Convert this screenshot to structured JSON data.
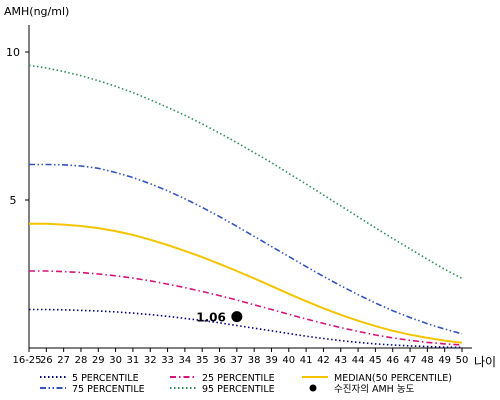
{
  "chart_data": {
    "type": "line",
    "ylabel": "AMH(ng/ml)",
    "xlabel": "나이",
    "x": [
      "16-25",
      "26",
      "27",
      "28",
      "29",
      "30",
      "31",
      "32",
      "33",
      "34",
      "35",
      "36",
      "37",
      "38",
      "39",
      "40",
      "41",
      "42",
      "43",
      "44",
      "45",
      "46",
      "47",
      "48",
      "49",
      "50"
    ],
    "ylim": [
      0,
      11
    ],
    "yticks": [
      5,
      10
    ],
    "series": [
      {
        "name": "5 PERCENTILE",
        "color": "#000080",
        "dash": "dot",
        "values": [
          1.3,
          1.3,
          1.29,
          1.27,
          1.25,
          1.22,
          1.18,
          1.13,
          1.07,
          1.0,
          0.93,
          0.85,
          0.76,
          0.67,
          0.58,
          0.49,
          0.4,
          0.32,
          0.25,
          0.19,
          0.14,
          0.1,
          0.07,
          0.05,
          0.03,
          0.02
        ]
      },
      {
        "name": "25 PERCENTILE",
        "color": "#d4147a",
        "dash": "dashdot",
        "values": [
          2.6,
          2.6,
          2.58,
          2.55,
          2.5,
          2.44,
          2.36,
          2.27,
          2.16,
          2.04,
          1.91,
          1.77,
          1.62,
          1.46,
          1.3,
          1.14,
          0.98,
          0.83,
          0.69,
          0.56,
          0.44,
          0.34,
          0.26,
          0.19,
          0.14,
          0.1
        ]
      },
      {
        "name": "MEDIAN(50 PERCENTILE)",
        "color": "#f5c400",
        "dash": "solid",
        "values": [
          4.2,
          4.2,
          4.17,
          4.12,
          4.05,
          3.95,
          3.82,
          3.66,
          3.48,
          3.28,
          3.07,
          2.84,
          2.6,
          2.35,
          2.09,
          1.83,
          1.58,
          1.34,
          1.12,
          0.92,
          0.74,
          0.58,
          0.45,
          0.34,
          0.25,
          0.18
        ]
      },
      {
        "name": "75 PERCENTILE",
        "color": "#3355bb",
        "dash": "dashdotdot",
        "values": [
          6.2,
          6.2,
          6.19,
          6.15,
          6.07,
          5.93,
          5.76,
          5.55,
          5.31,
          5.04,
          4.75,
          4.44,
          4.11,
          3.77,
          3.43,
          3.09,
          2.75,
          2.42,
          2.1,
          1.8,
          1.52,
          1.26,
          1.03,
          0.82,
          0.64,
          0.48
        ]
      },
      {
        "name": "95 PERCENTILE",
        "color": "#2e8b57",
        "dash": "dot",
        "values": [
          9.55,
          9.46,
          9.34,
          9.2,
          9.03,
          8.84,
          8.63,
          8.39,
          8.13,
          7.86,
          7.57,
          7.26,
          6.94,
          6.6,
          6.26,
          5.9,
          5.54,
          5.17,
          4.8,
          4.43,
          4.06,
          3.7,
          3.35,
          3.0,
          2.66,
          2.35
        ]
      }
    ],
    "annotation": {
      "x": "37",
      "y": 1.06,
      "label": "1.06",
      "legend": "수진자의 AMH 농도"
    },
    "legend_placement": "bottom",
    "grid": false
  }
}
